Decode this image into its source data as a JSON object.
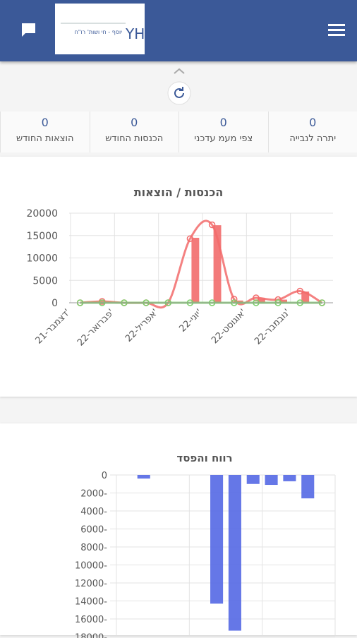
{
  "header": {
    "logo_text": "יוסף - חי ושות' רו\"ח",
    "logo_mark": "YH"
  },
  "stats": [
    {
      "value": 0,
      "label": "יתרה לנבייה"
    },
    {
      "value": 0,
      "label": "צפי מעמ עדכני"
    },
    {
      "value": 0,
      "label": "הכנסות החודש"
    },
    {
      "value": 0,
      "label": "הוצאות החודש"
    }
  ],
  "chart_data": [
    {
      "type": "combo",
      "title": "הכנסות / הוצאות",
      "categories": [
        "דצמבר-21'",
        null,
        "פברואר-22'",
        null,
        "אפריל-22'",
        null,
        "יוני-22'",
        null,
        "אוגוסט-22'",
        null,
        "נובמבר-22'",
        null
      ],
      "series": [
        {
          "type": "bar",
          "color": "#f26b6b",
          "values": [
            0,
            0,
            0,
            0,
            0,
            14500,
            17300,
            500,
            1000,
            700,
            2500,
            0
          ]
        },
        {
          "type": "line",
          "color": "#f26b6b",
          "values": [
            0,
            300,
            0,
            0,
            0,
            14300,
            17400,
            800,
            1100,
            700,
            2600,
            0
          ]
        },
        {
          "type": "line",
          "color": "#7ccf6a",
          "values": [
            0,
            0,
            0,
            0,
            0,
            0,
            0,
            0,
            0,
            0,
            0,
            0
          ]
        }
      ],
      "ylim": [
        0,
        20000
      ],
      "yticks": [
        0,
        5000,
        10000,
        15000,
        20000
      ],
      "grid": true
    },
    {
      "type": "bar",
      "title": "רווח והפסד",
      "color": "#5468e4",
      "values": [
        0,
        -400,
        0,
        0,
        0,
        -14300,
        -17300,
        -1000,
        -1100,
        -700,
        -2600,
        0
      ],
      "ylim": [
        -18000,
        0
      ],
      "yticks": [
        0,
        {
          "value": -2000,
          "label": "2000-"
        },
        {
          "value": -4000,
          "label": "4000-"
        },
        {
          "value": -6000,
          "label": "6000-"
        },
        {
          "value": -8000,
          "label": "8000-"
        },
        {
          "value": -10000,
          "label": "10000-"
        },
        {
          "value": -12000,
          "label": "12000-"
        },
        {
          "value": -14000,
          "label": "14000-"
        },
        {
          "value": -16000,
          "label": "16000-"
        },
        {
          "value": -18000,
          "label": "18000-"
        }
      ],
      "grid": true
    }
  ]
}
